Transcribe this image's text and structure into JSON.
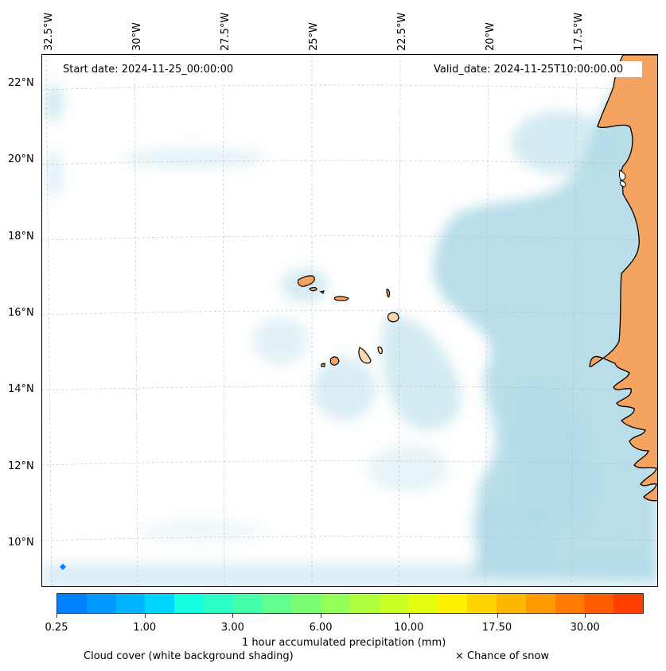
{
  "map": {
    "start_date": "Start date: 2024-11-25_00:00:00",
    "valid_date": "Valid_date: 2024-11-25T10:00:00.00",
    "lon_labels": [
      "32.5°W",
      "30°W",
      "27.5°W",
      "25°W",
      "22.5°W",
      "20°W",
      "17.5°W"
    ],
    "lat_labels": [
      "22°N",
      "20°N",
      "18°N",
      "16°N",
      "14°N",
      "12°N",
      "10°N"
    ],
    "land_color": "#f4a460",
    "cloud_color": "#add8e6"
  },
  "colorbar": {
    "colors": [
      "#0080ff",
      "#0099ff",
      "#00b3ff",
      "#00d5ff",
      "#14ffe0",
      "#2effc4",
      "#46ffaa",
      "#60ff8e",
      "#7aff72",
      "#94ff56",
      "#b0ff3e",
      "#ccff22",
      "#e6ff10",
      "#fff200",
      "#ffd500",
      "#ffb800",
      "#ff9a00",
      "#ff7c00",
      "#ff5e00",
      "#ff4000"
    ],
    "tick_labels": [
      "0.25",
      "1.00",
      "3.00",
      "6.00",
      "10.00",
      "17.50",
      "30.00"
    ],
    "label": "1 hour accumulated precipitation (mm)"
  },
  "legend": {
    "cloud_text": "Cloud cover (white background shading)",
    "snow_text": "× Chance of snow"
  }
}
